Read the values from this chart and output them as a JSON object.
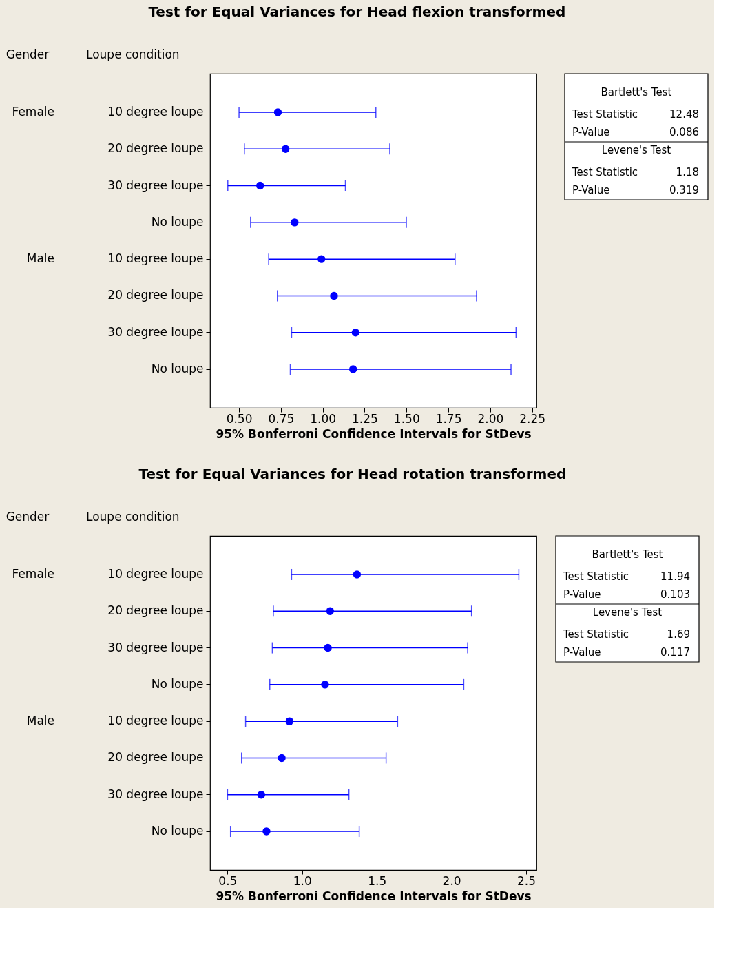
{
  "chart_data": [
    {
      "type": "scatter",
      "orientation": "horizontal",
      "marker": "circle",
      "color": "#0000ff",
      "grid": false,
      "title": "Test for Equal Variances for Head flexion transformed",
      "xlabel": "95% Bonferroni Confidence Intervals for StDevs",
      "ylabel": "Loupe condition",
      "annotations": [
        "Gender",
        "Female",
        "Male"
      ],
      "categories": [
        "10 degree loupe",
        "20 degree loupe",
        "30 degree loupe",
        "No loupe",
        "10 degree loupe",
        "20 degree loupe",
        "30 degree loupe",
        "No loupe"
      ],
      "values": [
        0.732,
        0.778,
        0.626,
        0.832,
        0.992,
        1.067,
        1.196,
        1.181
      ],
      "errors": [
        [
          0.5,
          1.317
        ],
        [
          0.532,
          1.4
        ],
        [
          0.433,
          1.135
        ],
        [
          0.569,
          1.499
        ],
        [
          0.677,
          1.79
        ],
        [
          0.729,
          1.918
        ],
        [
          0.814,
          2.154
        ],
        [
          0.806,
          2.124
        ]
      ],
      "xlim": [
        0.327,
        2.276
      ],
      "xticks": [
        {
          "value": 0.5,
          "label": "0.50"
        },
        0.75,
        {
          "value": 1.0,
          "label": "1.00"
        },
        1.25,
        {
          "value": 1.5,
          "label": "1.50"
        },
        1.75,
        {
          "value": 2.0,
          "label": "2.00"
        },
        2.25
      ]
    },
    {
      "type": "other",
      "annotations": [
        "Bartlett's Test",
        "Test Statistic",
        "12.48",
        "P-Value",
        "0.086",
        "Levene's Test",
        "Test Statistic",
        "1.18",
        "P-Value",
        "0.319"
      ]
    },
    {
      "type": "scatter",
      "orientation": "horizontal",
      "marker": "circle",
      "color": "#0000ff",
      "grid": false,
      "title": "Test for Equal Variances for Head rotation transformed",
      "xlabel": "95% Bonferroni Confidence Intervals for StDevs",
      "ylabel": "Loupe condition",
      "annotations": [
        "Gender",
        "Female",
        "Male"
      ],
      "categories": [
        "10 degree loupe",
        "20 degree loupe",
        "30 degree loupe",
        "No loupe",
        "10 degree loupe",
        "20 degree loupe",
        "30 degree loupe",
        "No loupe"
      ],
      "values": [
        1.367,
        1.187,
        1.172,
        1.153,
        0.915,
        0.863,
        0.726,
        0.761
      ],
      "errors": [
        [
          0.929,
          2.451
        ],
        [
          0.807,
          2.134
        ],
        [
          0.8,
          2.108
        ],
        [
          0.783,
          2.082
        ],
        [
          0.621,
          1.639
        ],
        [
          0.594,
          1.562
        ],
        [
          0.5,
          1.313
        ],
        [
          0.52,
          1.382
        ]
      ],
      "xlim": [
        0.383,
        2.569
      ],
      "xticks": [
        0.5,
        {
          "value": 1.0,
          "label": "1.0"
        },
        1.5,
        {
          "value": 2.0,
          "label": "2.0"
        },
        2.5
      ]
    },
    {
      "type": "other",
      "annotations": [
        "Bartlett's Test",
        "Test Statistic",
        "11.94",
        "P-Value",
        "0.103",
        "Levene's Test",
        "Test Statistic",
        "1.69",
        "P-Value",
        "0.117"
      ]
    }
  ]
}
